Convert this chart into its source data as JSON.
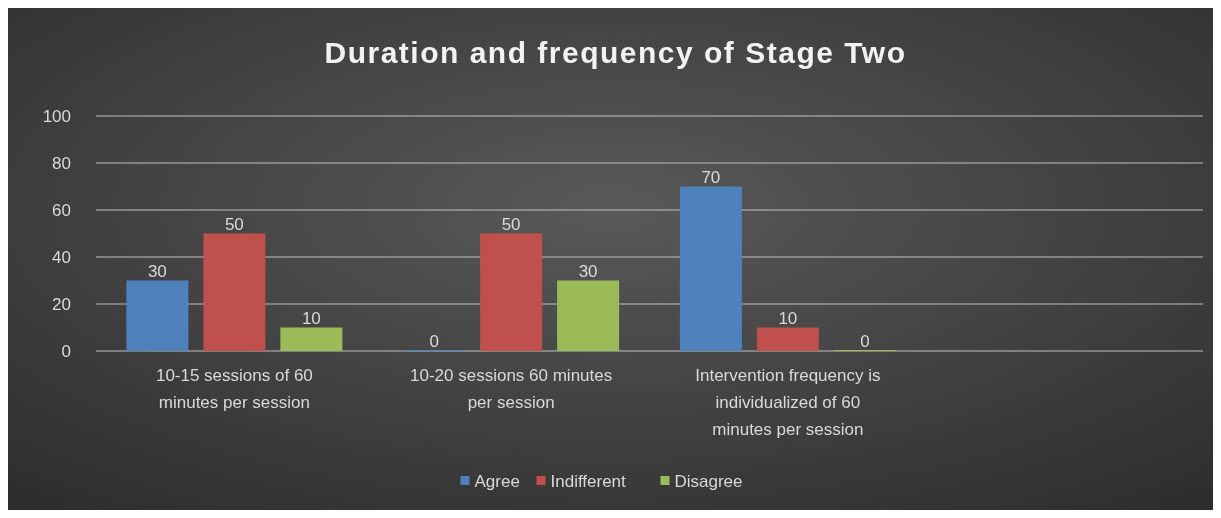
{
  "chart_data": {
    "type": "bar",
    "title": "Duration and frequency of Stage Two",
    "categories": [
      "10-15 sessions of 60 minutes per session",
      "10-20 sessions 60 minutes per session",
      "Intervention frequency is individualized of 60 minutes per session",
      null
    ],
    "series": [
      {
        "name": "Agree",
        "color": "#4f81bd",
        "values": [
          30,
          0,
          70,
          null
        ]
      },
      {
        "name": "Indifferent",
        "color": "#c0504d",
        "values": [
          50,
          50,
          10,
          null
        ]
      },
      {
        "name": "Disagree",
        "color": "#9bbb59",
        "values": [
          10,
          30,
          0,
          null
        ]
      }
    ],
    "ylim": [
      0,
      100
    ],
    "yticks": [
      0,
      20,
      40,
      60,
      80,
      100
    ],
    "grid": "y",
    "legend": "bottom",
    "data_labels": true
  }
}
